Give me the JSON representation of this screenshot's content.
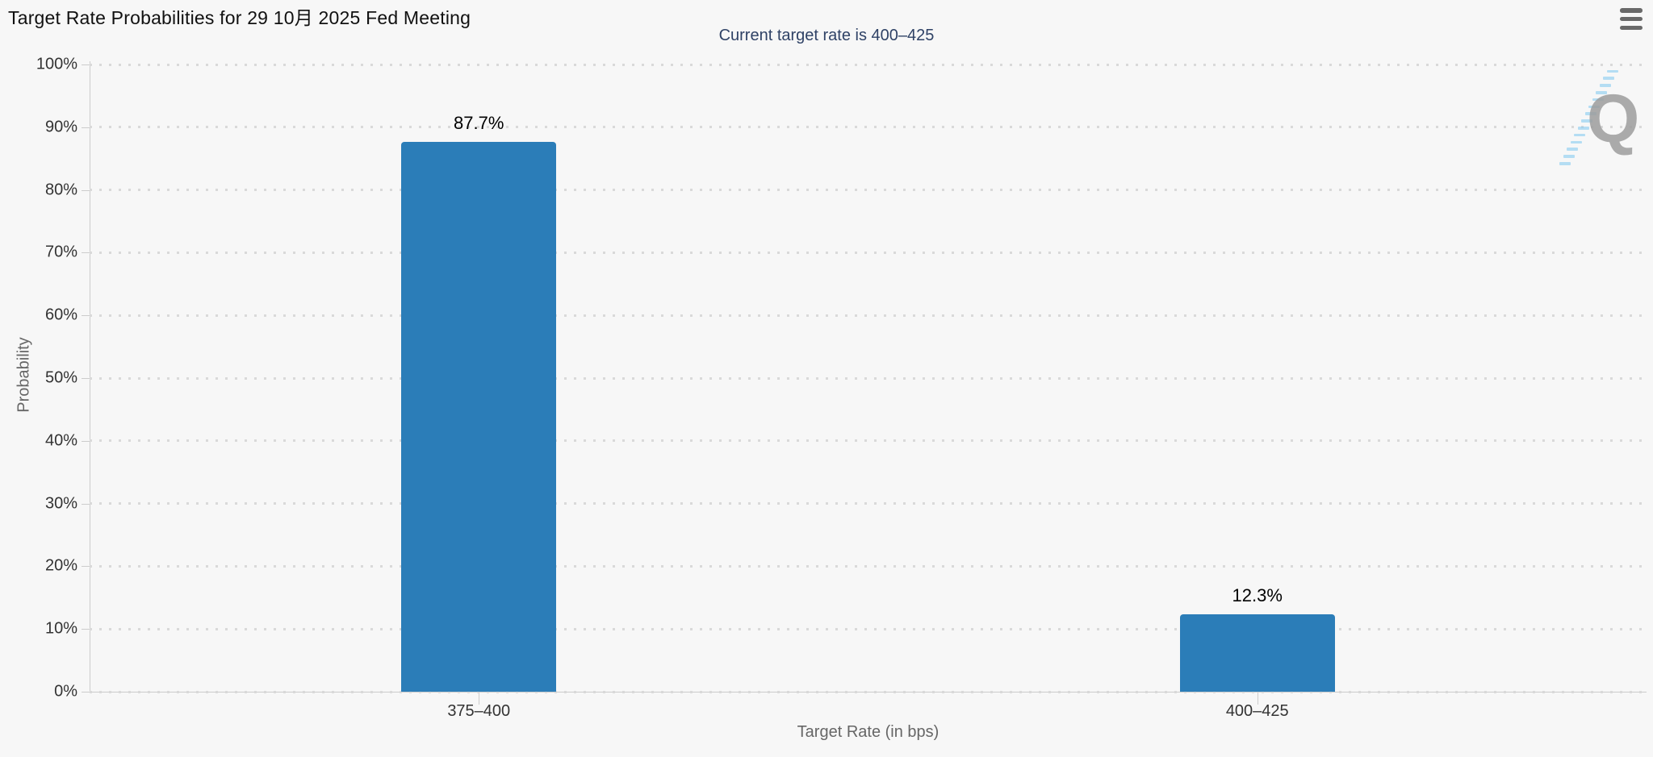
{
  "header": {
    "title": "Target Rate Probabilities for 29 10月 2025 Fed Meeting",
    "subtitle": "Current target rate is 400–425"
  },
  "toolbar": {
    "menu_icon": "hamburger-icon"
  },
  "watermark": {
    "letter": "Q"
  },
  "chart_data": {
    "type": "bar",
    "title": "Target Rate Probabilities for 29 10月 2025 Fed Meeting",
    "subtitle": "Current target rate is 400–425",
    "categories": [
      "375–400",
      "400–425"
    ],
    "values": [
      87.7,
      12.3
    ],
    "data_labels": [
      "87.7%",
      "12.3%"
    ],
    "xlabel": "Target Rate (in bps)",
    "ylabel": "Probability",
    "ylim": [
      0,
      100
    ],
    "yticks": [
      "0%",
      "10%",
      "20%",
      "30%",
      "40%",
      "50%",
      "60%",
      "70%",
      "80%",
      "90%",
      "100%"
    ],
    "grid": "dotted-horizontal",
    "legend": "none",
    "bar_color": "#2b7db8"
  },
  "colors": {
    "background": "#f7f7f7",
    "bar": "#2b7db8",
    "title_text": "#111111",
    "subtitle_text": "#2f4266",
    "axis_label": "#333333",
    "axis_title": "#666666",
    "axis_line": "#cccccc",
    "grid_dot": "#d9d9d9",
    "menu_icon": "#696969",
    "watermark_q": "#9d9d9d",
    "watermark_dash": "#87cbf0"
  }
}
